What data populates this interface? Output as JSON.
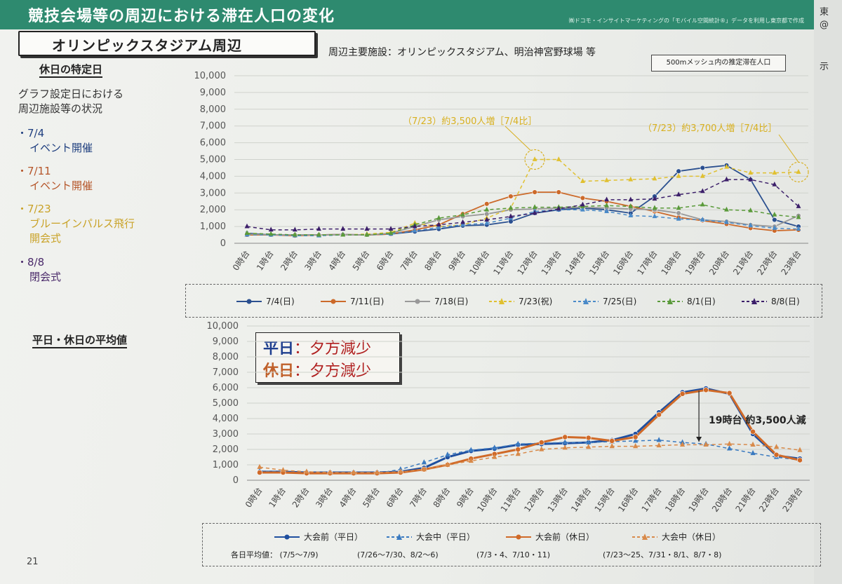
{
  "header": {
    "title": "競技会場等の周辺における滞在人口の変化",
    "source": "㈱ドコモ・インサイトマーケティングの「モバイル空間統計®」データを利用し東京都で作成"
  },
  "right_page": {
    "t1": "東",
    "t2": "@",
    "t3": "示"
  },
  "section": {
    "name": "オリンピックスタジアム周辺",
    "facilities": "周辺主要施設：オリンピックスタジアム、明治神宮野球場 等",
    "mesh_note": "500mメッシュ内の推定滞在人口"
  },
  "left": {
    "heading1": "休日の特定日",
    "note_line1": "グラフ設定日における",
    "note_line2": "周辺施設等の状況",
    "events": [
      {
        "date": "・7/4",
        "desc": "イベント開催",
        "color": "#1f3f7f"
      },
      {
        "date": "・7/11",
        "desc": "イベント開催",
        "color": "#b5562a"
      },
      {
        "date": "・7/23",
        "desc": "ブルーインパルス飛行",
        "desc2": "開会式",
        "color": "#c9a227"
      },
      {
        "date": "・8/8",
        "desc": "閉会式",
        "color": "#4a2a6a"
      }
    ],
    "heading2": "平日・休日の平均値"
  },
  "highlight": {
    "weekday_label": "平日",
    "weekday_text": "：夕方減少",
    "holiday_label": "休日",
    "holiday_text": "：夕方減少",
    "colon": "："
  },
  "page_number": "21",
  "chart_data": [
    {
      "type": "line",
      "title": "休日の特定日",
      "categories": [
        "0時台",
        "1時台",
        "2時台",
        "3時台",
        "4時台",
        "5時台",
        "6時台",
        "7時台",
        "8時台",
        "9時台",
        "10時台",
        "11時台",
        "12時台",
        "13時台",
        "14時台",
        "15時台",
        "16時台",
        "17時台",
        "18時台",
        "19時台",
        "20時台",
        "21時台",
        "22時台",
        "23時台"
      ],
      "y_ticks": [
        "0",
        "1,000",
        "2,000",
        "3,000",
        "4,000",
        "5,000",
        "6,000",
        "7,000",
        "8,000",
        "9,000",
        "10,000"
      ],
      "ylim": [
        0,
        10000
      ],
      "annotations": [
        "（7/23）約3,500人増［7/4比］",
        "（7/23）約3,700人増［7/4比］"
      ],
      "series": [
        {
          "name": "7/4(日)",
          "color": "#2a4f8f",
          "dash": false,
          "marker": "circle",
          "values": [
            600,
            500,
            500,
            500,
            520,
            500,
            550,
            700,
            850,
            1050,
            1100,
            1300,
            1800,
            2000,
            2100,
            2000,
            1800,
            2800,
            4300,
            4500,
            4650,
            3800,
            1400,
            1000
          ]
        },
        {
          "name": "7/11(日)",
          "color": "#cc6a2a",
          "dash": false,
          "marker": "circle",
          "values": [
            500,
            500,
            450,
            500,
            520,
            500,
            550,
            800,
            1100,
            1750,
            2350,
            2800,
            3050,
            3050,
            2700,
            2500,
            2200,
            1900,
            1550,
            1350,
            1150,
            900,
            750,
            800
          ]
        },
        {
          "name": "7/18(日)",
          "color": "#999999",
          "dash": false,
          "marker": "circle",
          "values": [
            550,
            500,
            500,
            500,
            520,
            500,
            600,
            1000,
            1400,
            1600,
            1750,
            2000,
            2050,
            2100,
            2150,
            2100,
            2050,
            2000,
            1800,
            1400,
            1300,
            1100,
            1000,
            1650
          ]
        },
        {
          "name": "7/23(祝)",
          "color": "#e0c030",
          "dash": true,
          "marker": "triangle",
          "values": [
            550,
            500,
            500,
            500,
            500,
            550,
            650,
            1200,
            1000,
            1100,
            1500,
            2100,
            5000,
            5000,
            3700,
            3750,
            3800,
            3850,
            4000,
            4000,
            4550,
            4200,
            4200,
            4250
          ]
        },
        {
          "name": "7/25(日)",
          "color": "#4a8ac8",
          "dash": true,
          "marker": "triangle",
          "values": [
            500,
            500,
            450,
            450,
            500,
            500,
            550,
            750,
            950,
            1100,
            1200,
            1500,
            1900,
            2000,
            2000,
            1900,
            1650,
            1600,
            1450,
            1400,
            1250,
            1050,
            900,
            850
          ]
        },
        {
          "name": "8/1(日)",
          "color": "#5a9a3a",
          "dash": true,
          "marker": "triangle",
          "values": [
            600,
            550,
            500,
            500,
            500,
            500,
            600,
            1100,
            1500,
            1700,
            2000,
            2100,
            2150,
            2150,
            2200,
            2250,
            2200,
            2100,
            2100,
            2300,
            2000,
            1950,
            1700,
            1550
          ]
        },
        {
          "name": "8/8(日)",
          "color": "#3c1f6a",
          "dash": true,
          "marker": "triangle",
          "values": [
            1000,
            800,
            800,
            850,
            850,
            850,
            850,
            1000,
            1100,
            1250,
            1400,
            1600,
            1800,
            2050,
            2300,
            2600,
            2600,
            2650,
            2900,
            3100,
            3800,
            3800,
            3500,
            2200
          ]
        }
      ]
    },
    {
      "type": "line",
      "title": "平日・休日の平均値",
      "categories": [
        "0時台",
        "1時台",
        "2時台",
        "3時台",
        "4時台",
        "5時台",
        "6時台",
        "7時台",
        "8時台",
        "9時台",
        "10時台",
        "11時台",
        "12時台",
        "13時台",
        "14時台",
        "15時台",
        "16時台",
        "17時台",
        "18時台",
        "19時台",
        "20時台",
        "21時台",
        "22時台",
        "23時台"
      ],
      "y_ticks": [
        "0",
        "1,000",
        "2,000",
        "3,000",
        "4,000",
        "5,000",
        "6,000",
        "7,000",
        "8,000",
        "9,000",
        "10,000"
      ],
      "ylim": [
        0,
        10000
      ],
      "annotation": "19時台 約3,500人減",
      "periods": [
        {
          "label": "各日平均値：",
          "range": "(7/5～7/9)"
        },
        {
          "label": "",
          "range": "(7/26～7/30、8/2～6)"
        },
        {
          "label": "",
          "range": "(7/3・4、7/10・11)"
        },
        {
          "label": "",
          "range": "(7/23～25、7/31・8/1、8/7・8)"
        }
      ],
      "series": [
        {
          "name": "大会前（平日）",
          "color": "#1f4f9f",
          "dash": false,
          "marker": "circle",
          "values": [
            550,
            550,
            500,
            500,
            500,
            500,
            550,
            800,
            1500,
            1900,
            2050,
            2300,
            2350,
            2400,
            2450,
            2600,
            3000,
            4400,
            5700,
            5950,
            5600,
            3000,
            1600,
            1400
          ]
        },
        {
          "name": "大会中（平日）",
          "color": "#3a7ac0",
          "dash": true,
          "marker": "triangle",
          "values": [
            600,
            550,
            500,
            450,
            450,
            450,
            700,
            1150,
            1650,
            1950,
            2100,
            2350,
            2400,
            2450,
            2450,
            2500,
            2550,
            2600,
            2450,
            2350,
            2050,
            1750,
            1500,
            1300
          ]
        },
        {
          "name": "大会前（休日）",
          "color": "#d06a28",
          "dash": false,
          "marker": "circle",
          "values": [
            500,
            500,
            450,
            450,
            450,
            450,
            500,
            700,
            1000,
            1400,
            1700,
            2000,
            2450,
            2800,
            2750,
            2550,
            2800,
            4250,
            5600,
            5850,
            5650,
            3150,
            1650,
            1300
          ]
        },
        {
          "name": "大会中（休日）",
          "color": "#d88a4a",
          "dash": true,
          "marker": "triangle",
          "values": [
            850,
            650,
            550,
            500,
            500,
            500,
            550,
            700,
            1000,
            1250,
            1500,
            1700,
            2000,
            2100,
            2150,
            2200,
            2200,
            2250,
            2300,
            2300,
            2350,
            2300,
            2150,
            1950
          ]
        }
      ]
    }
  ]
}
